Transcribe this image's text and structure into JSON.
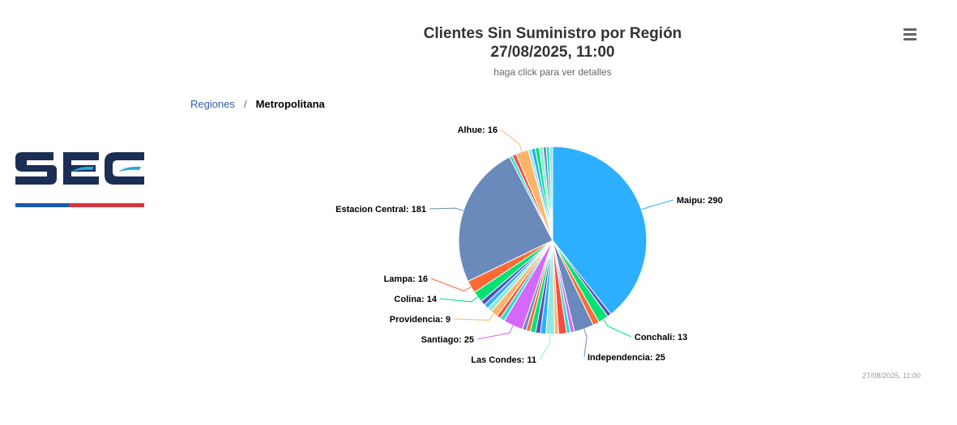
{
  "chart_title": "Clientes Sin Suministro por Región",
  "chart_title_date": "27/08/2025, 11:00",
  "chart_subtitle": "haga click para ver detalles",
  "menu_icon": "hamburger-menu-icon",
  "breadcrumb": {
    "root": "Regiones",
    "separator": "/",
    "current": "Metropolitana"
  },
  "logo": {
    "text": "SEC",
    "colors": {
      "navy": "#1c2e55",
      "cyan": "#2aa7e0",
      "blue": "#1b5ba8",
      "red": "#d9343c"
    }
  },
  "credits": "27/08/2025, 11:00",
  "chart_data": {
    "type": "pie",
    "title": "Clientes Sin Suministro por Región 27/08/2025, 11:00",
    "subtitle": "haga click para ver detalles",
    "slices": [
      {
        "name": "Maipu",
        "value": 290,
        "color": "#2caffe",
        "label": true
      },
      {
        "name": "",
        "value": 5,
        "color": "#544fc5"
      },
      {
        "name": "Conchali",
        "value": 13,
        "color": "#00e272",
        "label": true
      },
      {
        "name": "",
        "value": 8,
        "color": "#fe6a35"
      },
      {
        "name": "Independencia",
        "value": 25,
        "color": "#6b8abc",
        "label": true
      },
      {
        "name": "",
        "value": 5,
        "color": "#d568fb"
      },
      {
        "name": "",
        "value": 5,
        "color": "#2ee0ca"
      },
      {
        "name": "",
        "value": 10,
        "color": "#fa4b42"
      },
      {
        "name": "",
        "value": 5,
        "color": "#feb56a"
      },
      {
        "name": "Las Condes",
        "value": 11,
        "color": "#91e8e1"
      },
      {
        "name": "",
        "value": 7,
        "color": "#2caffe"
      },
      {
        "name": "",
        "value": 6,
        "color": "#544fc5"
      },
      {
        "name": "",
        "value": 7,
        "color": "#00e272"
      },
      {
        "name": "",
        "value": 5,
        "color": "#fe6a35"
      },
      {
        "name": "",
        "value": 5,
        "color": "#6b8abc"
      },
      {
        "name": "Santiago",
        "value": 25,
        "color": "#d568fb",
        "label": true
      },
      {
        "name": "",
        "value": 6,
        "color": "#2ee0ca"
      },
      {
        "name": "",
        "value": 5,
        "color": "#fa4b42"
      },
      {
        "name": "Providencia",
        "value": 9,
        "color": "#feb56a"
      },
      {
        "name": "",
        "value": 6,
        "color": "#91e8e1"
      },
      {
        "name": "",
        "value": 6,
        "color": "#2caffe"
      },
      {
        "name": "",
        "value": 6,
        "color": "#544fc5"
      },
      {
        "name": "Colina",
        "value": 14,
        "color": "#00e272",
        "label": true
      },
      {
        "name": "Lampa",
        "value": 16,
        "color": "#fe6a35",
        "label": true
      },
      {
        "name": "Estacion Central",
        "value": 181,
        "color": "#6b8abc",
        "label": true
      },
      {
        "name": "",
        "value": 4,
        "color": "#2ee0ca"
      },
      {
        "name": "",
        "value": 5,
        "color": "#fa4b42"
      },
      {
        "name": "Alhue",
        "value": 16,
        "color": "#feb56a",
        "label": true
      },
      {
        "name": "",
        "value": 4,
        "color": "#91e8e1"
      },
      {
        "name": "",
        "value": 5,
        "color": "#2caffe"
      },
      {
        "name": "",
        "value": 5,
        "color": "#00e272"
      },
      {
        "name": "",
        "value": 5,
        "color": "#91e8e1"
      },
      {
        "name": "",
        "value": 4,
        "color": "#6b8abc"
      },
      {
        "name": "",
        "value": 4,
        "color": "#2ee0ca"
      },
      {
        "name": "",
        "value": 4,
        "color": "#91e8e1"
      }
    ]
  }
}
